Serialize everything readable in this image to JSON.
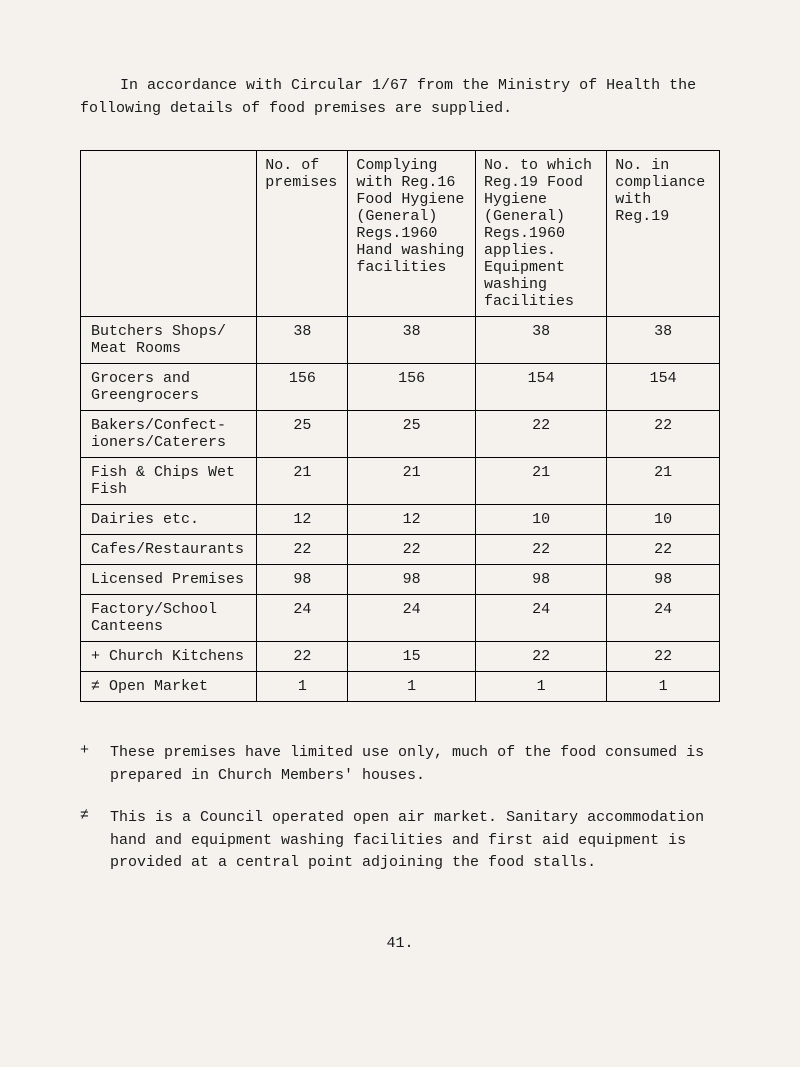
{
  "intro": "In accordance with Circular 1/67 from the Ministry of Health the following details of food premises are supplied.",
  "headers": {
    "col1": "",
    "col2": "No. of premises",
    "col3": "Complying with Reg.16 Food Hygiene (General) Regs.1960 Hand washing facilities",
    "col4": "No. to which Reg.19 Food Hygiene (General) Regs.1960 applies. Equipment washing facilities",
    "col5": "No. in compliance with Reg.19"
  },
  "rows": [
    {
      "marker": "",
      "category": "Butchers Shops/ Meat Rooms",
      "c2": "38",
      "c3": "38",
      "c4": "38",
      "c5": "38"
    },
    {
      "marker": "",
      "category": "Grocers and Greengrocers",
      "c2": "156",
      "c3": "156",
      "c4": "154",
      "c5": "154"
    },
    {
      "marker": "",
      "category": "Bakers/Confect- ioners/Caterers",
      "c2": "25",
      "c3": "25",
      "c4": "22",
      "c5": "22"
    },
    {
      "marker": "",
      "category": "Fish & Chips Wet Fish",
      "c2": "21",
      "c3": "21",
      "c4": "21",
      "c5": "21"
    },
    {
      "marker": "",
      "category": "Dairies etc.",
      "c2": "12",
      "c3": "12",
      "c4": "10",
      "c5": "10"
    },
    {
      "marker": "",
      "category": "Cafes/Restaurants",
      "c2": "22",
      "c3": "22",
      "c4": "22",
      "c5": "22"
    },
    {
      "marker": "",
      "category": "Licensed Premises",
      "c2": "98",
      "c3": "98",
      "c4": "98",
      "c5": "98"
    },
    {
      "marker": "",
      "category": "Factory/School Canteens",
      "c2": "24",
      "c3": "24",
      "c4": "24",
      "c5": "24"
    },
    {
      "marker": "+",
      "category": "Church Kitchens",
      "c2": "22",
      "c3": "15",
      "c4": "22",
      "c5": "22"
    },
    {
      "marker": "≠",
      "category": "Open Market",
      "c2": "1",
      "c3": "1",
      "c4": "1",
      "c5": "1"
    }
  ],
  "notes": [
    {
      "marker": "+",
      "text": "These premises have limited use only, much of the food consumed is prepared in Church Members' houses."
    },
    {
      "marker": "≠",
      "text": "This is a Council operated open air market. Sanitary accommodation hand and equipment washing facilities and first aid equipment is provided at a central point adjoining the food stalls."
    }
  ],
  "pageNumber": "41."
}
